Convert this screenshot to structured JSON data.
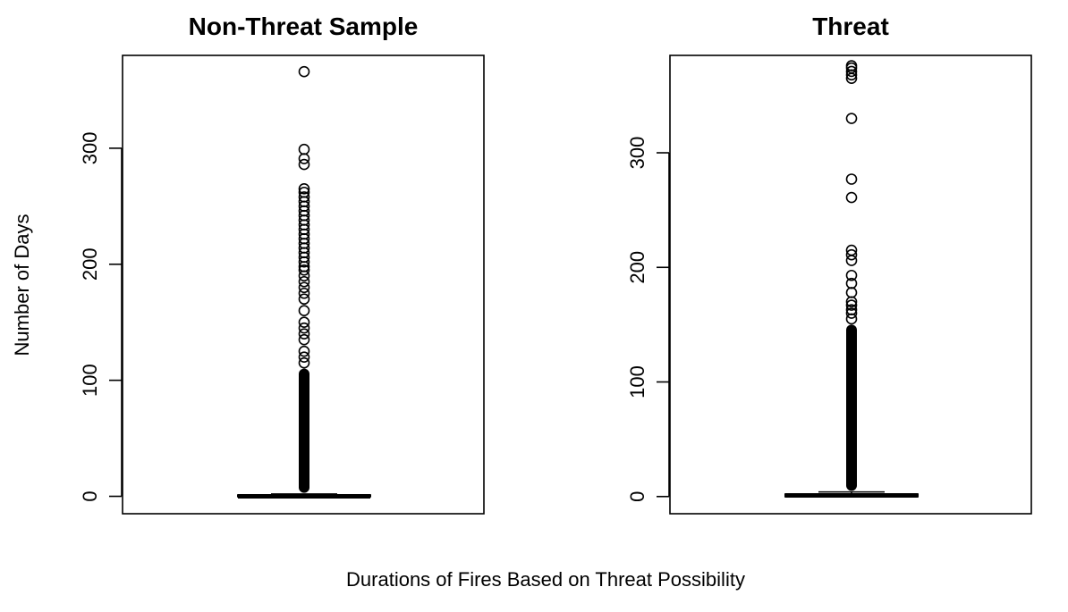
{
  "figure": {
    "ylabel": "Number of Days",
    "xlabel": "Durations of Fires Based on Threat Possibility"
  },
  "chart_data": [
    {
      "type": "box",
      "title": "Non-Threat Sample",
      "xlabel": "",
      "ylabel": "Number of Days",
      "ylim": [
        -15,
        380
      ],
      "yticks": [
        0,
        100,
        200,
        300
      ],
      "grid": false,
      "box": {
        "min": 0,
        "q1": 0,
        "median": 0,
        "q3": 1,
        "max": 2
      },
      "outlier_band": [
        3,
        110
      ],
      "outliers": [
        115,
        120,
        125,
        135,
        140,
        145,
        150,
        160,
        170,
        175,
        180,
        185,
        190,
        195,
        198,
        202,
        206,
        210,
        214,
        218,
        222,
        226,
        230,
        234,
        238,
        242,
        246,
        250,
        254,
        258,
        262,
        265,
        286,
        291,
        299,
        366
      ]
    },
    {
      "type": "box",
      "title": "Threat",
      "xlabel": "",
      "ylabel": "",
      "ylim": [
        -15,
        385
      ],
      "yticks": [
        0,
        100,
        200,
        300
      ],
      "grid": false,
      "box": {
        "min": 0,
        "q1": 0,
        "median": 1,
        "q3": 2,
        "max": 4
      },
      "outlier_band": [
        5,
        150
      ],
      "outliers": [
        155,
        160,
        163,
        167,
        170,
        178,
        186,
        193,
        206,
        211,
        215,
        261,
        277,
        330,
        365,
        368,
        371,
        374,
        376
      ]
    }
  ]
}
